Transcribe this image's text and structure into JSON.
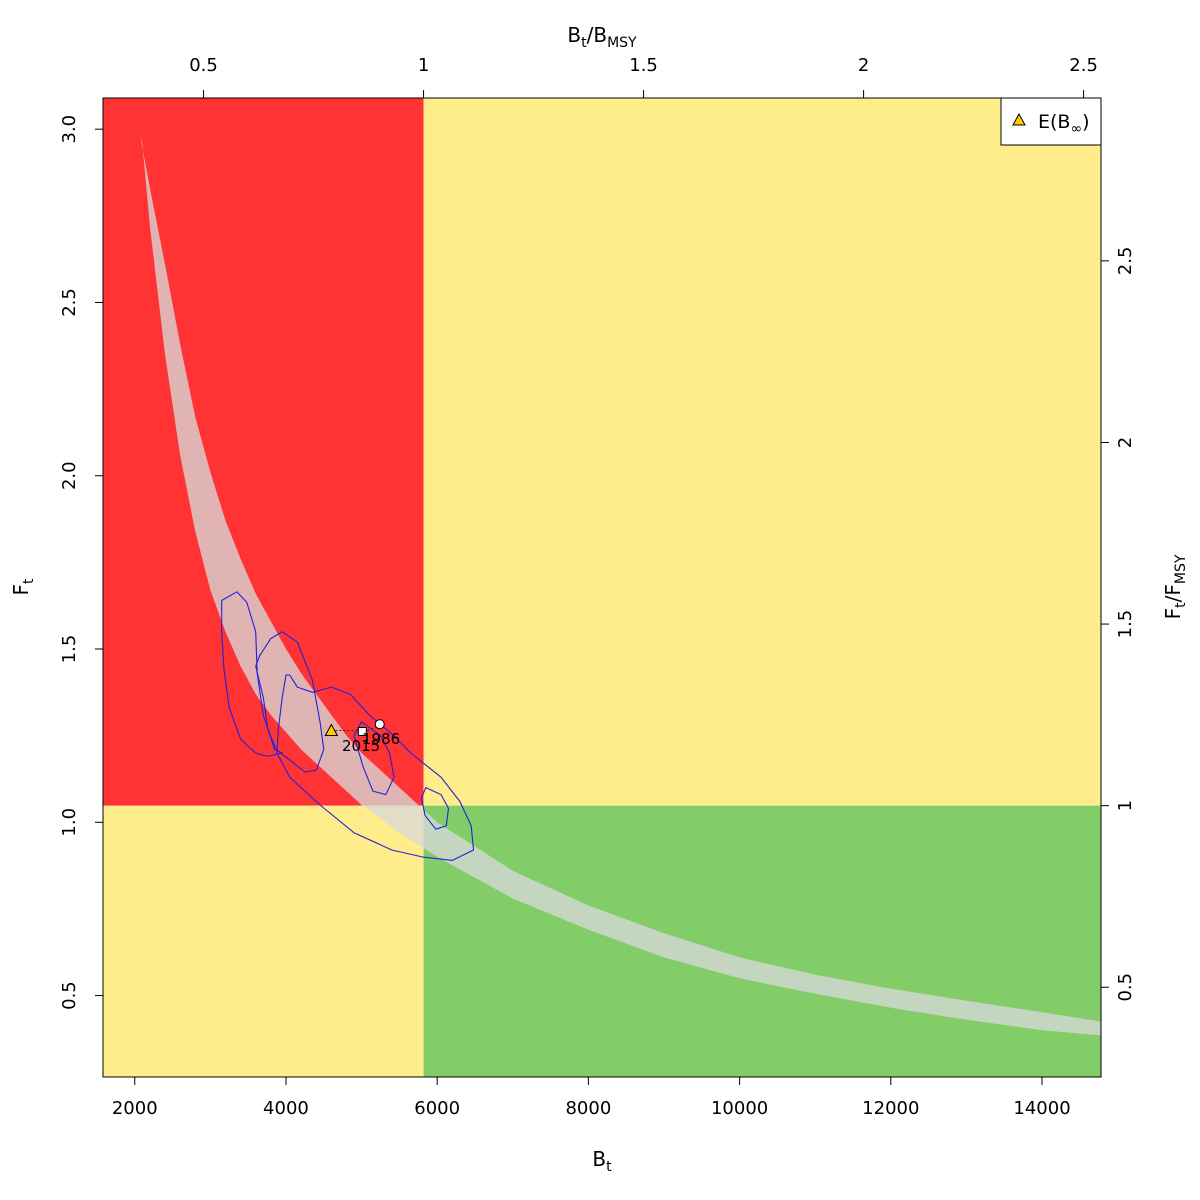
{
  "chart_data": {
    "type": "scatter",
    "title": "",
    "axes": {
      "bottom": {
        "label_main": "B",
        "label_sub": "t",
        "range": [
          1580,
          14780
        ],
        "ticks": [
          2000,
          4000,
          6000,
          8000,
          10000,
          12000,
          14000
        ]
      },
      "left": {
        "label_main": "F",
        "label_sub": "t",
        "range": [
          0.265,
          3.09
        ],
        "ticks": [
          0.5,
          1.0,
          1.5,
          2.0,
          2.5,
          3.0
        ]
      },
      "top": {
        "label_main": "B",
        "label_sub": "t",
        "label_sep": "/",
        "label_main2": "B",
        "label_sub2": "MSY",
        "ticks": [
          0.5,
          1,
          1.5,
          2,
          2.5
        ],
        "bmsy": 5820
      },
      "right": {
        "label_main": "F",
        "label_sub": "t",
        "label_sep": "/",
        "label_main2": "F",
        "label_sub2": "MSY",
        "ticks": [
          0.5,
          1,
          1.5,
          2,
          2.5
        ],
        "fmsy": 1.048
      }
    },
    "zones": [
      {
        "name": "overfished-overfishing",
        "color": "#ff3333",
        "x": [
          1580,
          5820
        ],
        "y": [
          1.048,
          3.09
        ]
      },
      {
        "name": "overfishing-only",
        "color": "#ffec8b",
        "x": [
          5820,
          14780
        ],
        "y": [
          1.048,
          3.09
        ]
      },
      {
        "name": "overfished-only",
        "color": "#ffec8b",
        "x": [
          1580,
          5820
        ],
        "y": [
          0.265,
          1.048
        ]
      },
      {
        "name": "sustainable",
        "color": "#82cd68",
        "x": [
          5820,
          14780
        ],
        "y": [
          0.265,
          1.048
        ]
      }
    ],
    "msy_band": {
      "color": "#d8d8d8",
      "upper": [
        [
          2070,
          2.985
        ],
        [
          2200,
          2.83
        ],
        [
          2400,
          2.61
        ],
        [
          2600,
          2.38
        ],
        [
          2800,
          2.17
        ],
        [
          3000,
          2.01
        ],
        [
          3200,
          1.87
        ],
        [
          3400,
          1.76
        ],
        [
          3600,
          1.66
        ],
        [
          3800,
          1.58
        ],
        [
          4000,
          1.5
        ],
        [
          4200,
          1.43
        ],
        [
          4400,
          1.37
        ],
        [
          4600,
          1.31
        ],
        [
          4800,
          1.25
        ],
        [
          5000,
          1.2
        ],
        [
          5200,
          1.16
        ],
        [
          5500,
          1.1
        ],
        [
          5800,
          1.04
        ],
        [
          6000,
          1.0
        ],
        [
          6500,
          0.93
        ],
        [
          7000,
          0.86
        ],
        [
          8000,
          0.76
        ],
        [
          9000,
          0.68
        ],
        [
          10000,
          0.61
        ],
        [
          11000,
          0.56
        ],
        [
          12000,
          0.52
        ],
        [
          13000,
          0.485
        ],
        [
          14000,
          0.452
        ],
        [
          14780,
          0.425
        ]
      ],
      "lower": [
        [
          2100,
          2.96
        ],
        [
          2200,
          2.72
        ],
        [
          2400,
          2.35
        ],
        [
          2600,
          2.06
        ],
        [
          2800,
          1.84
        ],
        [
          3000,
          1.67
        ],
        [
          3200,
          1.55
        ],
        [
          3400,
          1.45
        ],
        [
          3600,
          1.37
        ],
        [
          3800,
          1.31
        ],
        [
          4000,
          1.26
        ],
        [
          4200,
          1.21
        ],
        [
          4400,
          1.17
        ],
        [
          4600,
          1.13
        ],
        [
          4800,
          1.09
        ],
        [
          5000,
          1.05
        ],
        [
          5500,
          0.97
        ],
        [
          6000,
          0.9
        ],
        [
          6500,
          0.84
        ],
        [
          7000,
          0.78
        ],
        [
          8000,
          0.69
        ],
        [
          9000,
          0.61
        ],
        [
          10000,
          0.55
        ],
        [
          11000,
          0.505
        ],
        [
          12000,
          0.465
        ],
        [
          13000,
          0.43
        ],
        [
          14000,
          0.4
        ],
        [
          14780,
          0.385
        ]
      ]
    },
    "contours": [
      {
        "color": "#2222dd",
        "points": [
          [
            3150,
            1.64
          ],
          [
            3350,
            1.665
          ],
          [
            3480,
            1.635
          ],
          [
            3600,
            1.55
          ],
          [
            3620,
            1.43
          ],
          [
            3700,
            1.31
          ],
          [
            3850,
            1.21
          ],
          [
            3950,
            1.2
          ],
          [
            3750,
            1.19
          ],
          [
            3600,
            1.2
          ],
          [
            3400,
            1.24
          ],
          [
            3250,
            1.33
          ],
          [
            3180,
            1.44
          ],
          [
            3150,
            1.55
          ]
        ]
      },
      {
        "color": "#2222dd",
        "points": [
          [
            3650,
            1.48
          ],
          [
            3800,
            1.53
          ],
          [
            3950,
            1.55
          ],
          [
            4150,
            1.52
          ],
          [
            4350,
            1.41
          ],
          [
            4450,
            1.29
          ],
          [
            4500,
            1.21
          ],
          [
            4400,
            1.15
          ],
          [
            4250,
            1.145
          ],
          [
            4050,
            1.18
          ],
          [
            3870,
            1.21
          ],
          [
            3760,
            1.27
          ],
          [
            3700,
            1.36
          ],
          [
            3600,
            1.45
          ]
        ]
      },
      {
        "color": "#2222dd",
        "points": [
          [
            4000,
            1.425
          ],
          [
            3950,
            1.36
          ],
          [
            3900,
            1.27
          ],
          [
            3880,
            1.2
          ],
          [
            4050,
            1.13
          ],
          [
            4450,
            1.05
          ],
          [
            4900,
            0.97
          ],
          [
            5400,
            0.92
          ],
          [
            5800,
            0.9
          ],
          [
            6200,
            0.89
          ],
          [
            6480,
            0.92
          ],
          [
            6450,
            0.99
          ],
          [
            6300,
            1.06
          ],
          [
            6050,
            1.13
          ],
          [
            5650,
            1.2
          ],
          [
            5400,
            1.255
          ],
          [
            5100,
            1.31
          ],
          [
            4850,
            1.37
          ],
          [
            4600,
            1.39
          ],
          [
            4350,
            1.375
          ],
          [
            4150,
            1.39
          ],
          [
            4050,
            1.425
          ]
        ]
      },
      {
        "color": "#2222dd",
        "points": [
          [
            5000,
            1.29
          ],
          [
            5250,
            1.25
          ],
          [
            5370,
            1.2
          ],
          [
            5430,
            1.13
          ],
          [
            5320,
            1.08
          ],
          [
            5150,
            1.09
          ],
          [
            5020,
            1.16
          ],
          [
            4900,
            1.25
          ]
        ]
      },
      {
        "color": "#2222dd",
        "points": [
          [
            5850,
            1.1
          ],
          [
            6050,
            1.08
          ],
          [
            6150,
            1.04
          ],
          [
            6120,
            0.99
          ],
          [
            5980,
            0.98
          ],
          [
            5840,
            1.02
          ],
          [
            5790,
            1.07
          ]
        ]
      }
    ],
    "trajectory": {
      "color": "#333333",
      "points": [
        [
          5240,
          1.283
        ],
        [
          5130,
          1.268
        ],
        [
          5010,
          1.262
        ],
        [
          4820,
          1.265
        ],
        [
          4600,
          1.265
        ]
      ]
    },
    "markers": [
      {
        "label": "1986",
        "kind": "circle",
        "x": 5240,
        "y": 1.283
      },
      {
        "label": "2015",
        "kind": "square",
        "x": 5010,
        "y": 1.262
      },
      {
        "label": "E(B∞)",
        "kind": "triangle",
        "x": 4600,
        "y": 1.265,
        "color": "#ffcc00"
      }
    ],
    "annotations": [
      {
        "text": "1986"
      },
      {
        "text": "2015"
      }
    ],
    "legend": {
      "placement": "top-right",
      "entries": [
        {
          "symbol": "triangle",
          "color": "#ffcc00",
          "text_main": "E(B",
          "text_sub": "∞",
          "text_close": ")"
        }
      ]
    }
  }
}
